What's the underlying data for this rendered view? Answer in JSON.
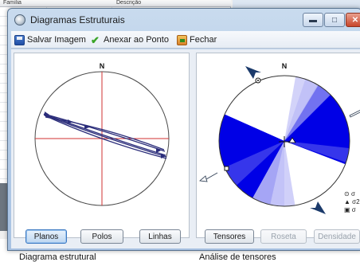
{
  "background_table": {
    "col_1": "Família",
    "col_2": "Descrição"
  },
  "window": {
    "title": "Diagramas Estruturais",
    "minimize_glyph": "▬",
    "maximize_glyph": "□",
    "close_glyph": "✕"
  },
  "toolbar": {
    "save_label": "Salvar Imagem",
    "attach_label": "Anexar ao Ponto",
    "close_label": "Fechar"
  },
  "left_diagram": {
    "north_label": "N",
    "buttons": [
      "Planos",
      "Polos",
      "Linhas"
    ],
    "selected_button": "Planos"
  },
  "right_diagram": {
    "north_label": "N",
    "buttons": [
      "Tensores",
      "Roseta",
      "Densidade"
    ],
    "selected_button": "Tensores",
    "disabled_buttons": [
      "Roseta",
      "Densidade"
    ],
    "legend": [
      "σ",
      "σ2",
      "σ"
    ]
  },
  "captions": {
    "left": "Diagrama estrutural",
    "right": "Análise de tensores"
  },
  "colors": {
    "compression_fill": "#0000e6",
    "plane_line": "#2b2d7a",
    "cross_hair": "#d23131",
    "selected_button": "#bcd6f1"
  },
  "icons": {
    "save": "floppy-disk-icon",
    "attach": "green-check-icon",
    "close": "exit-door-icon",
    "title": "stereonet-icon"
  }
}
